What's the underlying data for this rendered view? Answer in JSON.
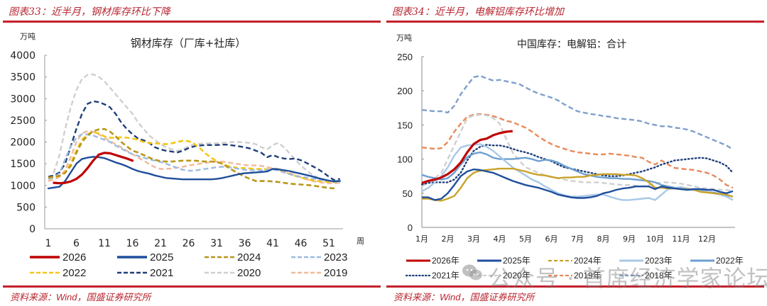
{
  "left_panel": {
    "figure_title": "图表33：近半月，钢材库存环比下降",
    "source_prefix": "资料来源：",
    "source_wind": "Wind",
    "source_suffix": "，国盛证券研究所"
  },
  "right_panel": {
    "figure_title": "图表34：近半月，电解铝库存环比增加",
    "source_prefix": "资料来源：",
    "source_wind": "Wind",
    "source_suffix": "，国盛证券研究所"
  },
  "watermark": "公众号 · 首席经济学家论坛",
  "chart_data": [
    {
      "type": "line",
      "title": "钢材库存（厂库+社库）",
      "ylabel": "万吨",
      "xlabel": "周",
      "ylim": [
        0,
        4000
      ],
      "yticks": [
        0,
        500,
        1000,
        1500,
        2000,
        2500,
        3000,
        3500,
        4000
      ],
      "xlim": [
        1,
        53
      ],
      "xticks": [
        1,
        6,
        11,
        16,
        21,
        26,
        31,
        36,
        41,
        46,
        51
      ],
      "grid": false,
      "legend": "bottom",
      "x": [
        1,
        2,
        3,
        4,
        5,
        6,
        7,
        8,
        9,
        10,
        11,
        12,
        13,
        14,
        15,
        16,
        17,
        18,
        19,
        20,
        21,
        22,
        23,
        24,
        25,
        26,
        27,
        28,
        29,
        30,
        31,
        32,
        33,
        34,
        35,
        36,
        37,
        38,
        39,
        40,
        41,
        42,
        43,
        44,
        45,
        46,
        47,
        48,
        49,
        50,
        51,
        52,
        53
      ],
      "series": [
        {
          "name": "2026",
          "color": "#c00000",
          "style": "solid",
          "width": 3.2,
          "values": [
            null,
            1060,
            1050,
            1060,
            1090,
            1150,
            1250,
            1400,
            1570,
            1710,
            1750,
            1740,
            1700,
            1660,
            1620,
            1570
          ]
        },
        {
          "name": "2025",
          "color": "#1f4e9c",
          "style": "solid",
          "width": 2.4,
          "values": [
            930,
            950,
            970,
            1100,
            1300,
            1500,
            1610,
            1640,
            1660,
            1650,
            1630,
            1580,
            1530,
            1490,
            1440,
            1380,
            1330,
            1300,
            1270,
            1230,
            1200,
            1170,
            1160,
            1150,
            1140,
            1140,
            1140,
            1140,
            1140,
            1140,
            1150,
            1170,
            1200,
            1230,
            1260,
            1280,
            1290,
            1300,
            1310,
            1320,
            1380,
            1370,
            1350,
            1330,
            1300,
            1270,
            1240,
            1210,
            1170,
            1140,
            1110,
            1090,
            1100
          ]
        },
        {
          "name": "2024",
          "color": "#b8961a",
          "style": "dash",
          "width": 2.6,
          "values": [
            1180,
            1200,
            1220,
            1290,
            1450,
            1750,
            2000,
            2150,
            2250,
            2290,
            2300,
            2240,
            2130,
            2000,
            1900,
            1800,
            1760,
            1700,
            1640,
            1590,
            1560,
            1550,
            1550,
            1560,
            1570,
            1570,
            1570,
            1560,
            1550,
            1550,
            1540,
            1500,
            1420,
            1340,
            1270,
            1200,
            1150,
            1100,
            1100,
            1100,
            1090,
            1080,
            1060,
            1040,
            1030,
            1020,
            1010,
            1000,
            980,
            960,
            940,
            930,
            null
          ]
        },
        {
          "name": "2023",
          "color": "#9dbbe0",
          "style": "dash",
          "width": 2.4,
          "values": [
            1150,
            1180,
            1280,
            1600,
            1900,
            2100,
            2180,
            2170,
            2150,
            2100,
            2050,
            2000,
            1920,
            1850,
            1780,
            1720,
            1680,
            1640,
            1600,
            1570,
            1540,
            1500,
            1450,
            1400,
            1360,
            1340,
            1340,
            1360,
            1380,
            1400,
            1420,
            1430,
            1420,
            1400,
            1380,
            1360,
            1350,
            1350,
            1350,
            1360,
            1370,
            1340,
            1300,
            1260,
            1220,
            1200,
            1180,
            1160,
            1140,
            1120,
            1110,
            1100,
            1110
          ]
        },
        {
          "name": "2022",
          "color": "#f5c518",
          "style": "dash",
          "width": 2.6,
          "values": [
            1150,
            1180,
            1220,
            1300,
            1500,
            1800,
            2050,
            2180,
            2230,
            2200,
            2130,
            2100,
            2100,
            2110,
            2100,
            2080,
            2050,
            2000,
            1980,
            1970,
            1960,
            1950,
            1970,
            2000,
            2030,
            2020,
            1960,
            1860,
            1740,
            1640,
            1560,
            1500,
            1450,
            1420,
            1400,
            1400,
            1390,
            1380,
            1380,
            1370,
            1380,
            1360,
            1320,
            1260,
            1220,
            1180,
            1150,
            1120,
            1100,
            1090,
            1080,
            1080,
            1100
          ]
        },
        {
          "name": "2021",
          "color": "#1f3f7a",
          "style": "dash",
          "width": 2.4,
          "values": [
            1200,
            1230,
            1300,
            1500,
            1900,
            2300,
            2650,
            2880,
            2940,
            2920,
            2870,
            2800,
            2650,
            2450,
            2300,
            2180,
            2080,
            2040,
            1980,
            1880,
            1830,
            1800,
            1780,
            1760,
            1800,
            1860,
            1900,
            1920,
            1930,
            1930,
            1930,
            1940,
            1940,
            1920,
            1900,
            1880,
            1850,
            1800,
            1750,
            1650,
            1700,
            1650,
            1620,
            1610,
            1620,
            1580,
            1520,
            1450,
            1380,
            1300,
            1200,
            1120,
            1150
          ]
        },
        {
          "name": "2020",
          "color": "#cfcfcf",
          "style": "dash",
          "width": 2.4,
          "values": [
            1150,
            1300,
            1700,
            2300,
            2800,
            3200,
            3450,
            3550,
            3560,
            3500,
            3400,
            3250,
            3100,
            2950,
            2800,
            2650,
            2450,
            2300,
            2150,
            2050,
            1950,
            1880,
            1830,
            1800,
            1830,
            1900,
            1950,
            1960,
            1970,
            1970,
            1970,
            1980,
            1990,
            2000,
            2000,
            1990,
            1980,
            1950,
            1880,
            1830,
            1930,
            1980,
            1880,
            1740,
            1600,
            1460,
            1350,
            1250,
            1180,
            1130,
            1100,
            1080,
            1060
          ]
        },
        {
          "name": "2019",
          "color": "#f2b99a",
          "style": "dash",
          "width": 2.4,
          "values": [
            1100,
            1130,
            1200,
            1350,
            1650,
            2000,
            2200,
            2250,
            2240,
            2180,
            2100,
            2020,
            1950,
            1880,
            1800,
            1720,
            1640,
            1570,
            1490,
            1420,
            1380,
            1380,
            1390,
            1410,
            1430,
            1460,
            1480,
            1500,
            1520,
            1540,
            1550,
            1550,
            1530,
            1510,
            1490,
            1470,
            1460,
            1460,
            1450,
            1420,
            1400,
            1380,
            1340,
            1290,
            1240,
            1190,
            1140,
            1100,
            1080,
            1060,
            1050,
            1050,
            1060
          ]
        }
      ]
    },
    {
      "type": "line",
      "title": "中国库存：电解铝：合计",
      "ylabel": "万吨",
      "ylim": [
        0,
        250
      ],
      "yticks": [
        0,
        50,
        100,
        150,
        200,
        250
      ],
      "xticks": [
        "1月",
        "2月",
        "3月",
        "4月",
        "5月",
        "6月",
        "7月",
        "8月",
        "9月",
        "10月",
        "11月",
        "12月"
      ],
      "xlim_months": [
        1,
        13.1
      ],
      "grid": false,
      "legend": "bottom",
      "x_months": [
        1,
        1.25,
        1.5,
        1.75,
        2,
        2.25,
        2.5,
        2.75,
        3,
        3.25,
        3.5,
        3.75,
        4,
        4.25,
        4.5,
        4.75,
        5,
        5.25,
        5.5,
        5.75,
        6,
        6.25,
        6.5,
        6.75,
        7,
        7.25,
        7.5,
        7.75,
        8,
        8.25,
        8.5,
        8.75,
        9,
        9.25,
        9.5,
        9.75,
        10,
        10.25,
        10.5,
        10.75,
        11,
        11.25,
        11.5,
        11.75,
        12,
        12.25,
        12.5,
        12.75,
        13
      ],
      "series": [
        {
          "name": "2026年",
          "color": "#c00000",
          "style": "solid",
          "width": 3.2,
          "values": [
            65,
            68,
            70,
            73,
            78,
            85,
            95,
            110,
            122,
            128,
            130,
            135,
            138,
            140,
            141
          ]
        },
        {
          "name": "2025年",
          "color": "#1f4e9c",
          "style": "solid",
          "width": 2.4,
          "values": [
            44,
            44,
            40,
            42,
            50,
            62,
            75,
            82,
            85,
            84,
            82,
            80,
            76,
            72,
            68,
            65,
            62,
            60,
            58,
            55,
            52,
            48,
            46,
            44,
            43,
            43,
            44,
            46,
            50,
            52,
            55,
            57,
            58,
            60,
            60,
            60,
            56,
            60,
            58,
            57,
            56,
            55,
            56,
            56,
            55,
            55,
            52,
            50,
            53
          ]
        },
        {
          "name": "2024年",
          "color": "#c9a227",
          "style": "solid-dash",
          "width": 2.4,
          "values": [
            42,
            42,
            40,
            39,
            42,
            46,
            58,
            72,
            80,
            83,
            84,
            85,
            86,
            86,
            86,
            84,
            82,
            79,
            77,
            76,
            74,
            72,
            73,
            73,
            74,
            74,
            76,
            77,
            78,
            78,
            78,
            77,
            77,
            76,
            72,
            66,
            58,
            58,
            57,
            57,
            56,
            56,
            55,
            52,
            51,
            50,
            49,
            48,
            45
          ]
        },
        {
          "name": "2023年",
          "color": "#a8c8e8",
          "style": "solid",
          "width": 2.4,
          "values": [
            53,
            58,
            66,
            75,
            88,
            105,
            117,
            120,
            121,
            122,
            118,
            112,
            104,
            96,
            88,
            82,
            76,
            70,
            66,
            60,
            55,
            50,
            47,
            45,
            45,
            46,
            47,
            48,
            48,
            45,
            42,
            40,
            40,
            41,
            42,
            43,
            40,
            48,
            56,
            58,
            59,
            57,
            55,
            53,
            52,
            50,
            48,
            45,
            40
          ]
        },
        {
          "name": "2022年",
          "color": "#6c9fd0",
          "style": "solid",
          "width": 2.4,
          "values": [
            77,
            74,
            72,
            70,
            72,
            80,
            92,
            103,
            108,
            110,
            107,
            102,
            100,
            100,
            100,
            101,
            102,
            100,
            97,
            99,
            98,
            95,
            90,
            86,
            82,
            78,
            76,
            74,
            73,
            72,
            72,
            71,
            71,
            70,
            69,
            68,
            66,
            62,
            60,
            58,
            57,
            56,
            55,
            54,
            52,
            51,
            49,
            47,
            45
          ]
        },
        {
          "name": "2021年",
          "color": "#1f3f7a",
          "style": "dot",
          "width": 2.4,
          "values": [
            63,
            65,
            66,
            66,
            66,
            70,
            80,
            98,
            112,
            118,
            121,
            120,
            120,
            118,
            115,
            112,
            110,
            107,
            103,
            100,
            97,
            92,
            88,
            86,
            84,
            82,
            80,
            78,
            76,
            75,
            75,
            76,
            78,
            80,
            82,
            85,
            88,
            92,
            95,
            98,
            99,
            100,
            101,
            102,
            101,
            98,
            95,
            90,
            80
          ]
        },
        {
          "name": "2020年",
          "color": "#cfcfcf",
          "style": "dash",
          "width": 2.4,
          "values": [
            60,
            66,
            72,
            80,
            100,
            120,
            140,
            160,
            164,
            165,
            164,
            160,
            152,
            130,
            110,
            98,
            88,
            84,
            80,
            76,
            74,
            72,
            70,
            68,
            67,
            66,
            66,
            66,
            65,
            64,
            63,
            62,
            62,
            61,
            60,
            62,
            64,
            66,
            66,
            65,
            64,
            62,
            60,
            58,
            57,
            56,
            55,
            55,
            53
          ]
        },
        {
          "name": "2019年",
          "color": "#e8895a",
          "style": "dash",
          "width": 2.4,
          "values": [
            117,
            116,
            115,
            116,
            125,
            140,
            152,
            162,
            165,
            166,
            165,
            163,
            160,
            156,
            154,
            150,
            146,
            140,
            133,
            127,
            122,
            118,
            115,
            112,
            110,
            109,
            108,
            107,
            107,
            108,
            107,
            106,
            105,
            103,
            102,
            96,
            92,
            98,
            92,
            87,
            86,
            85,
            84,
            82,
            80,
            76,
            70,
            62,
            58
          ]
        },
        {
          "name": "2018年",
          "color": "#7f9fcc",
          "style": "dash",
          "width": 2.4,
          "values": [
            172,
            171,
            170,
            170,
            168,
            178,
            195,
            208,
            220,
            222,
            218,
            215,
            216,
            214,
            212,
            210,
            205,
            200,
            196,
            193,
            190,
            186,
            180,
            175,
            170,
            168,
            166,
            165,
            163,
            162,
            160,
            159,
            158,
            157,
            155,
            152,
            150,
            148,
            148,
            146,
            145,
            143,
            140,
            136,
            132,
            128,
            124,
            120,
            114
          ]
        }
      ]
    }
  ]
}
